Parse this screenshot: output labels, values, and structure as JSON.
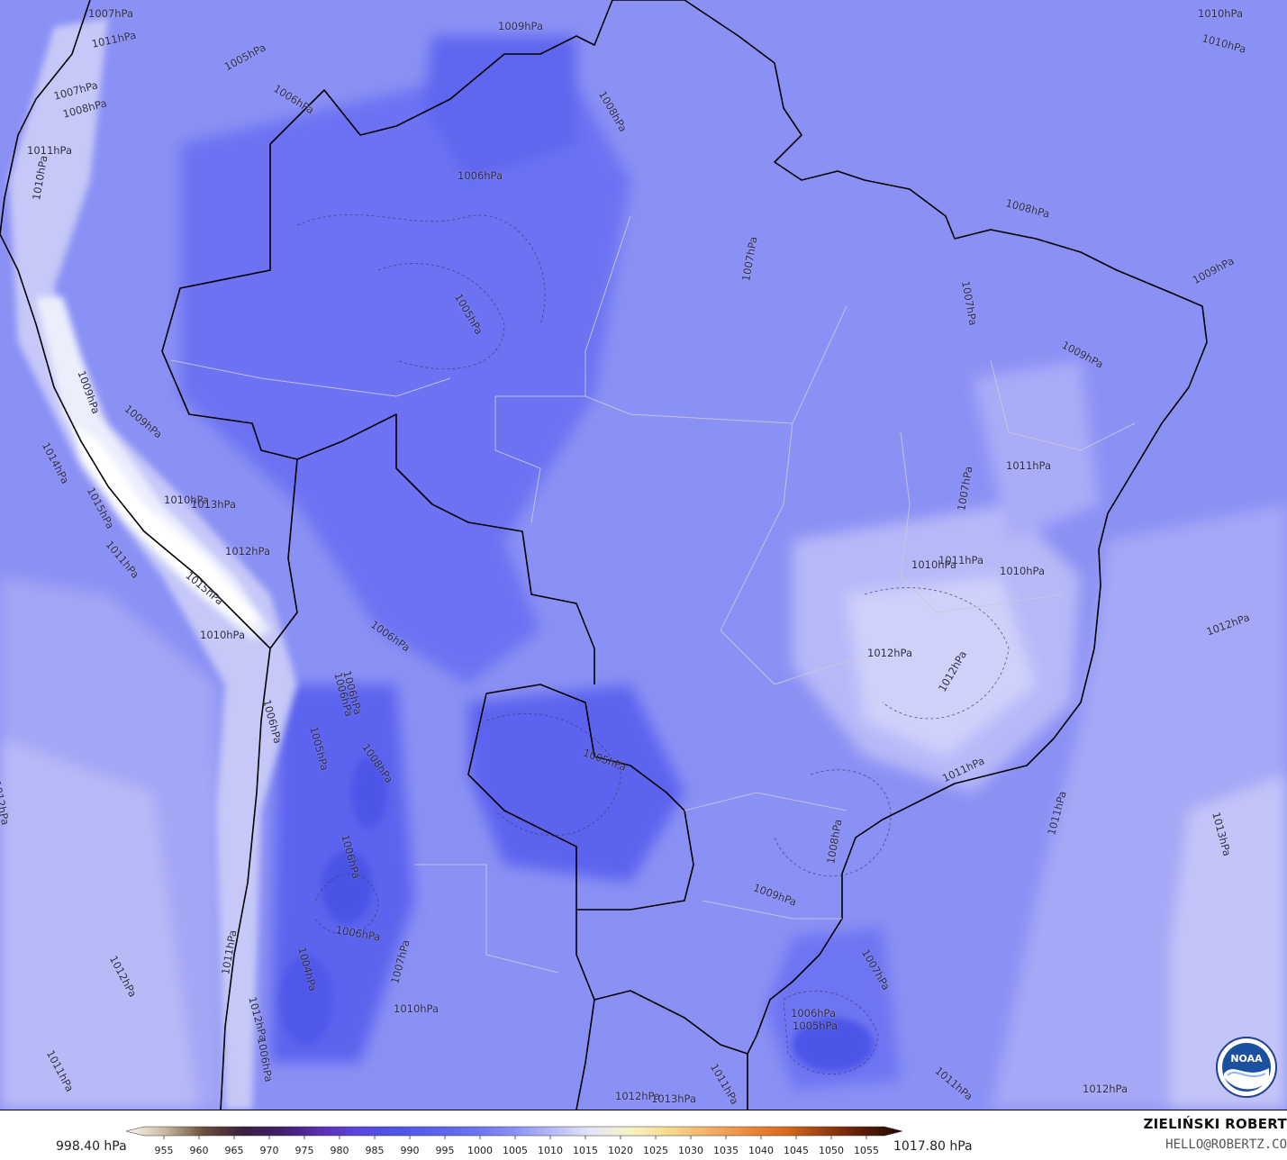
{
  "colors": {
    "base_field": "#8b90f4",
    "low_pressure": "#6c72f2",
    "deep_low": "#4d55e9",
    "high_pressure": "#b8bbf8",
    "highest_pressure": "#d9dbfb",
    "andes_snow": "#f2f2fb",
    "coast_line": "#000000",
    "state_borders": "#c8c8d8"
  },
  "contour_labels": [
    {
      "text": "1007hPa"
    },
    {
      "text": "1011hPa"
    },
    {
      "text": "1005hPa"
    },
    {
      "text": "1006hPa"
    },
    {
      "text": "1007hPa"
    },
    {
      "text": "1008hPa"
    },
    {
      "text": "1011hPa"
    },
    {
      "text": "1010hPa"
    },
    {
      "text": "1009hPa"
    },
    {
      "text": "1010hPa"
    },
    {
      "text": "1010hPa"
    },
    {
      "text": "1006hPa"
    },
    {
      "text": "1008hPa"
    },
    {
      "text": "1008hPa"
    },
    {
      "text": "1007hPa"
    },
    {
      "text": "1009hPa"
    },
    {
      "text": "1005hPa"
    },
    {
      "text": "1007hPa"
    },
    {
      "text": "1009hPa"
    },
    {
      "text": "1009hPa"
    },
    {
      "text": "1009hPa"
    },
    {
      "text": "1014hPa"
    },
    {
      "text": "1015hPa"
    },
    {
      "text": "1010hPa"
    },
    {
      "text": "1013hPa"
    },
    {
      "text": "1011hPa"
    },
    {
      "text": "1012hPa"
    },
    {
      "text": "1015hPa"
    },
    {
      "text": "1011hPa"
    },
    {
      "text": "1010hPa"
    },
    {
      "text": "1007hPa"
    },
    {
      "text": "1006hPa"
    },
    {
      "text": "1006hPa"
    },
    {
      "text": "1012hPa"
    },
    {
      "text": "1011hPa"
    },
    {
      "text": "1010hPa"
    },
    {
      "text": "1010hPa"
    },
    {
      "text": "1011hPa"
    },
    {
      "text": "1012hPa"
    },
    {
      "text": "1012hPa"
    },
    {
      "text": "1005hPa"
    },
    {
      "text": "1012hPa"
    },
    {
      "text": "1011hPa"
    },
    {
      "text": "1013hPa"
    },
    {
      "text": "1011hPa"
    },
    {
      "text": "1012hPa"
    },
    {
      "text": "1008hPa"
    },
    {
      "text": "1009hPa"
    },
    {
      "text": "1005hPa"
    },
    {
      "text": "1006hPa"
    },
    {
      "text": "1006hPa"
    },
    {
      "text": "1007hPa"
    },
    {
      "text": "1010hPa"
    },
    {
      "text": "1012hPa"
    },
    {
      "text": "1011hPa"
    },
    {
      "text": "1012hPa"
    },
    {
      "text": "1006hPa"
    },
    {
      "text": "1011hPa"
    },
    {
      "text": "1006hPa"
    },
    {
      "text": "1005hPa"
    },
    {
      "text": "1007hPa"
    },
    {
      "text": "1011hPa"
    },
    {
      "text": "1012hPa"
    },
    {
      "text": "1013hPa"
    },
    {
      "text": "1006hPa"
    },
    {
      "text": "1008hPa"
    },
    {
      "text": "1006hPa"
    },
    {
      "text": "1004hPa"
    }
  ],
  "legend": {
    "min_value": "998.40 hPa",
    "max_value": "1017.80 hPa",
    "ticks": [
      "955",
      "960",
      "965",
      "970",
      "975",
      "980",
      "985",
      "990",
      "995",
      "1000",
      "1005",
      "1010",
      "1015",
      "1020",
      "1025",
      "1030",
      "1035",
      "1040",
      "1045",
      "1050",
      "1055"
    ],
    "stops": [
      "#fbf8f0",
      "#c9b8a4",
      "#6b4f3a",
      "#3a1f3f",
      "#3e1f6e",
      "#5a2fb2",
      "#5c44e0",
      "#4d55e9",
      "#5a63ec",
      "#6c72f2",
      "#8b90f4",
      "#b8bbf8",
      "#e6e6f8",
      "#f7f3c4",
      "#f9d88e",
      "#f4b06a",
      "#ee8a3c",
      "#d86a1c",
      "#9a3e10",
      "#5a1a06",
      "#1e0a02"
    ]
  },
  "credits": {
    "author": "ZIELIŃSKI ROBERT",
    "email": "HELLO@ROBERTZ.CO"
  },
  "logo": {
    "text": "NOAA",
    "icon": "noaa-logo-icon"
  }
}
